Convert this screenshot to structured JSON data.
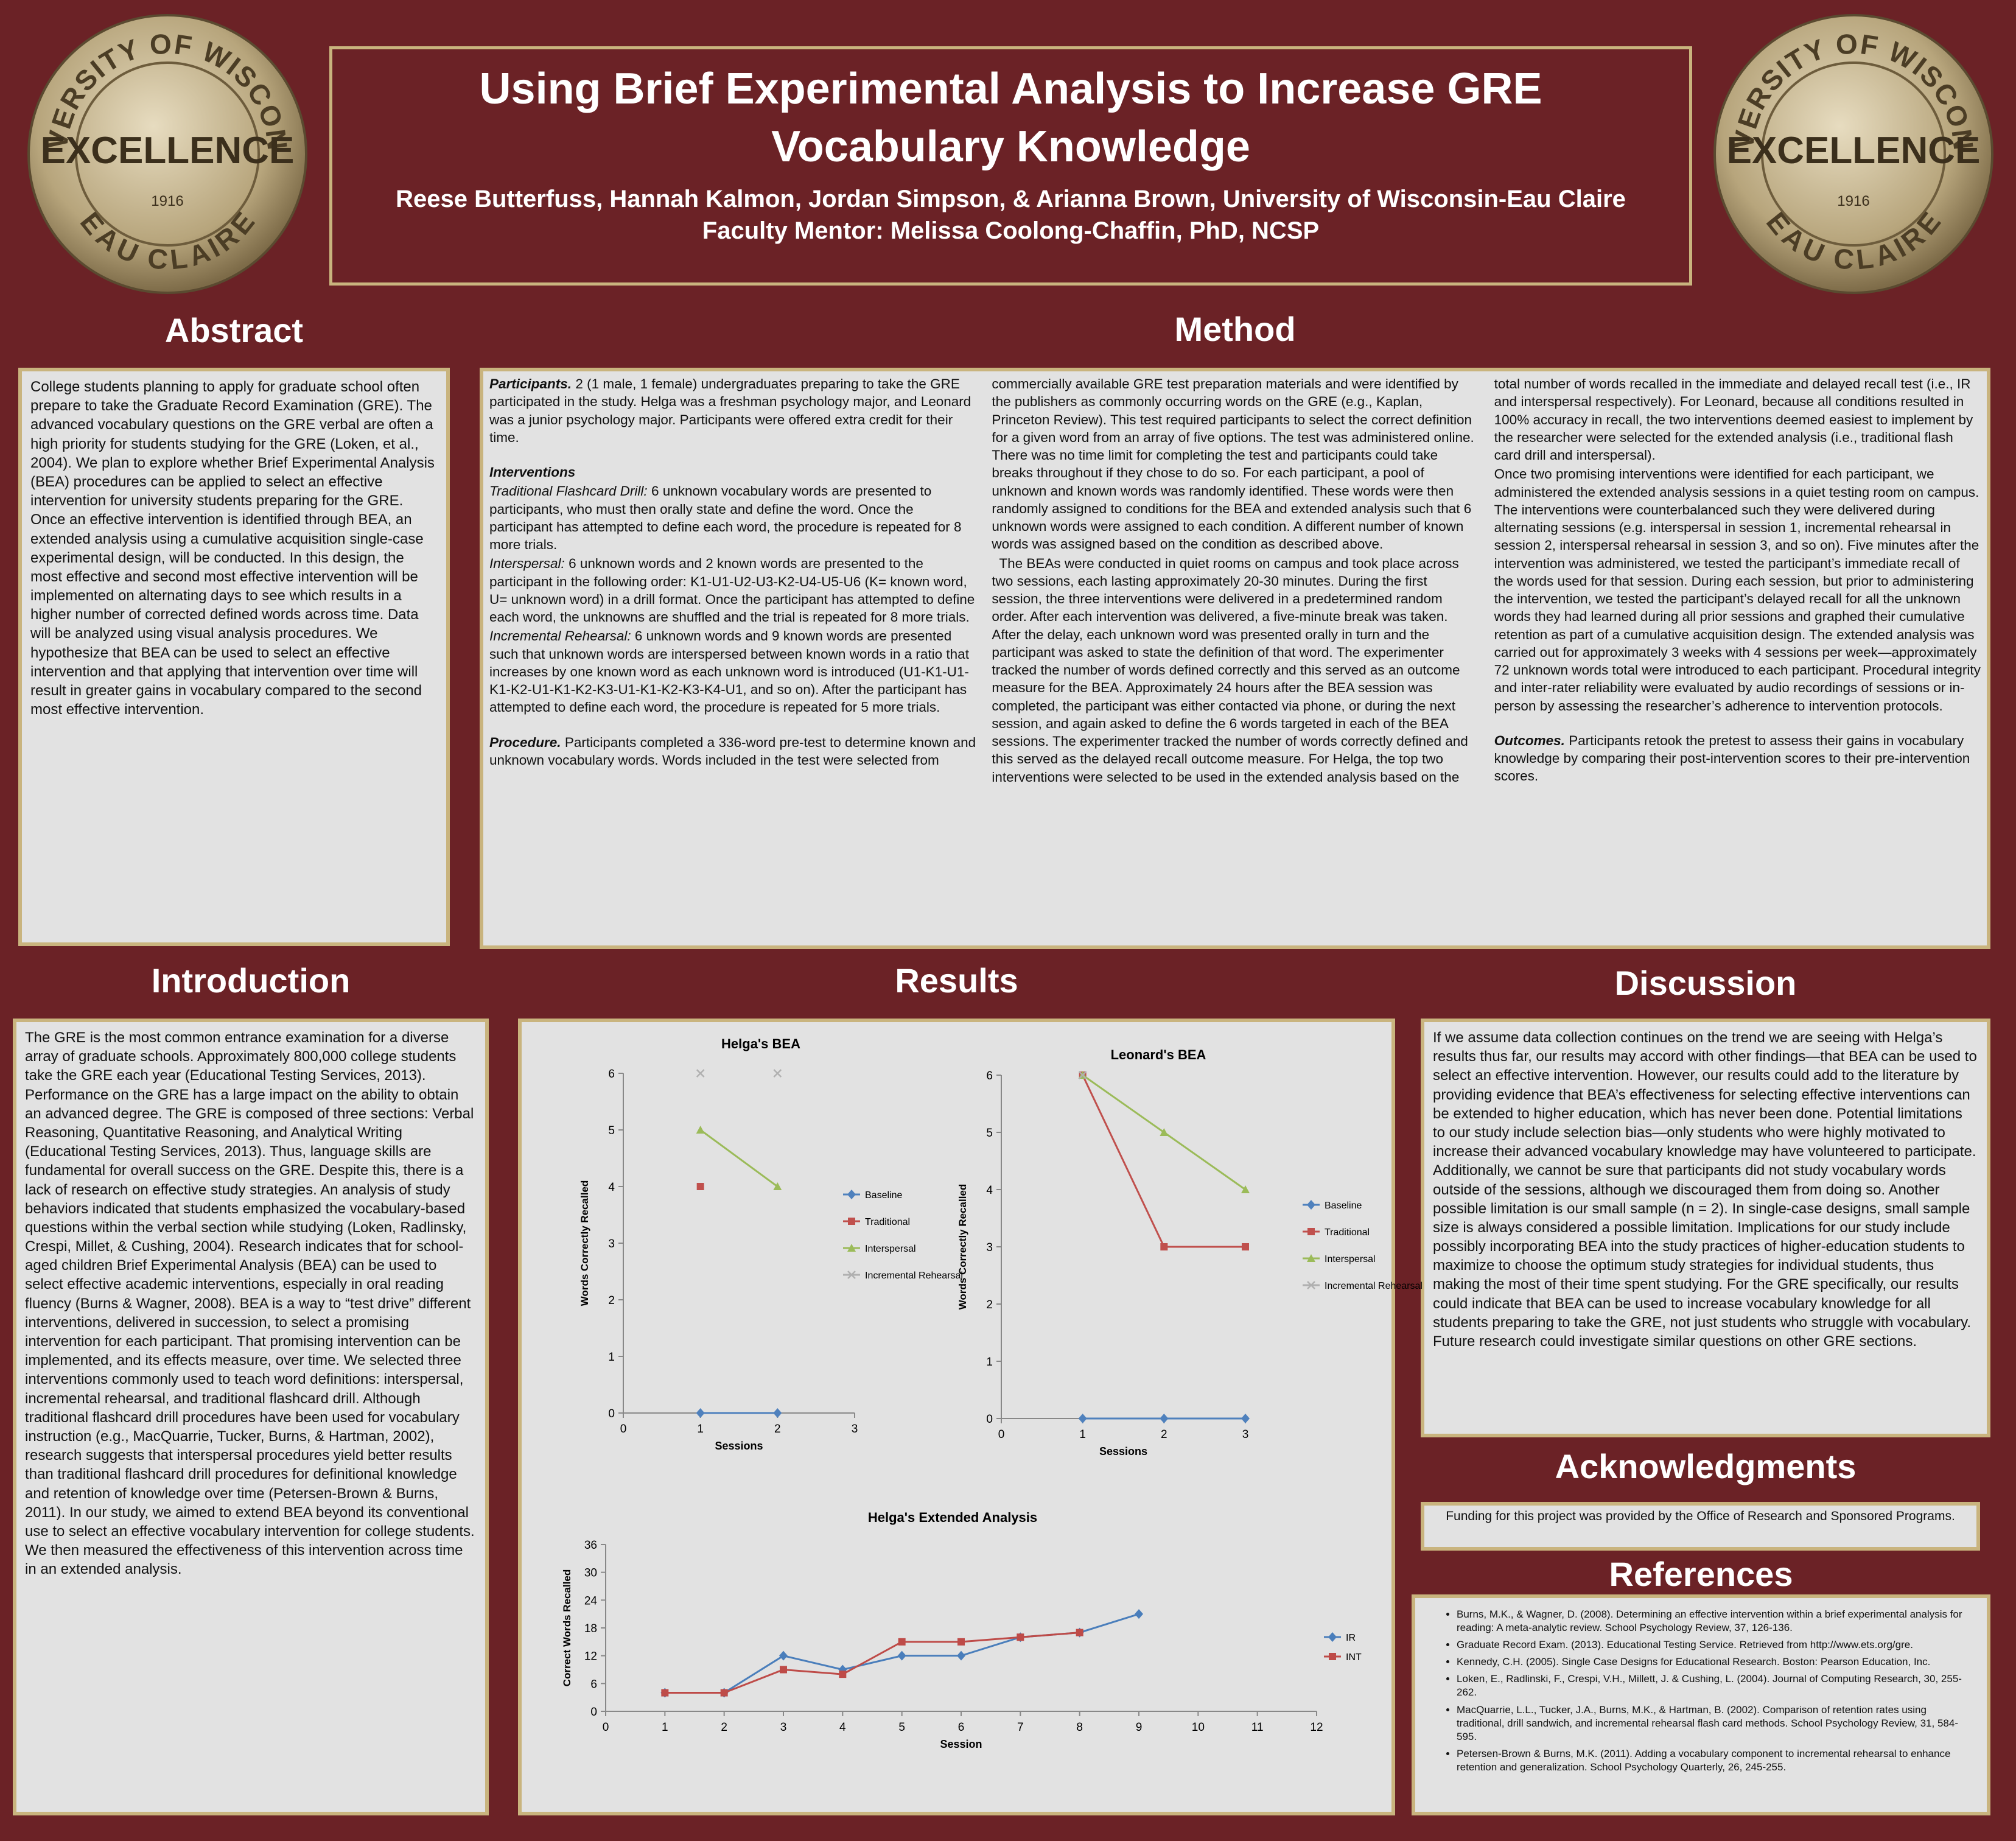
{
  "header": {
    "title": "Using Brief Experimental Analysis to Increase GRE Vocabulary Knowledge",
    "authors": "Reese Butterfuss, Hannah Kalmon, Jordan Simpson, & Arianna Brown, University of Wisconsin-Eau Claire",
    "mentor": "Faculty Mentor: Melissa Coolong-Chaffin, PhD, NCSP"
  },
  "logo": {
    "top": "UNIVERSITY OF WISCONSIN",
    "center": "EXCELLENCE",
    "year": "1916",
    "bottom": "EAU CLAIRE"
  },
  "abstract": {
    "heading": "Abstract",
    "text": "College students planning to apply for graduate school often prepare to take the Graduate Record Examination (GRE). The advanced vocabulary questions on the GRE verbal are often a high priority for students studying for the GRE (Loken, et al., 2004). We plan to explore whether Brief Experimental Analysis (BEA) procedures can be applied to select an effective intervention for university students preparing for the GRE. Once an effective intervention is identified through BEA, an extended analysis using a cumulative acquisition single-case experimental design, will be conducted. In this design, the most effective and second most effective intervention will be implemented on alternating days to see which results in a higher number of corrected defined words across time. Data will be analyzed using visual analysis procedures. We hypothesize that BEA can be used to select an effective intervention and that applying that intervention over time will result in greater gains in vocabulary compared to the second most effective intervention."
  },
  "method": {
    "heading": "Method",
    "paragraphs": [
      {
        "lead": "Participants.",
        "text": "2 (1 male, 1 female) undergraduates preparing to take the GRE participated in the study. Helga was a freshman psychology major, and Leonard was a junior psychology major. Participants were offered extra credit for their time."
      },
      {
        "lead": "Interventions",
        "text": ""
      },
      {
        "lead": "Traditional Flashcard Drill:",
        "text": "6 unknown vocabulary words are presented to participants, who must then orally state and define the word. Once the participant has attempted to define each word, the procedure is repeated for 8 more trials."
      },
      {
        "lead": "Interspersal:",
        "text": "6 unknown words and 2 known words are presented to the participant in the following order: K1-U1-U2-U3-K2-U4-U5-U6 (K= known word, U= unknown word) in a drill format. Once the participant has attempted to define each word, the unknowns are shuffled and the trial is repeated for 8 more trials."
      },
      {
        "lead": "Incremental Rehearsal:",
        "text": "6 unknown words and 9 known words are presented such that unknown words are interspersed between known words in a ratio that increases by one known word as each unknown word is introduced (U1-K1-U1-K1-K2-U1-K1-K2-K3-U1-K1-K2-K3-K4-U1, and so on). After the participant has attempted to define each word, the procedure is repeated for 5 more trials."
      },
      {
        "lead": "Procedure.",
        "text": "Participants completed a 336-word pre-test to determine known and unknown vocabulary words. Words included in the test were selected from commercially available GRE test preparation materials and were identified by the publishers as commonly occurring words on the GRE (e.g., Kaplan, Princeton Review). This test required participants to select the correct definition for a given word from an array of five options. The test was administered online. There was no time limit for completing the test and participants could take breaks throughout if they chose to do so. For each participant, a pool of unknown and known words was randomly identified. These words were then randomly assigned to conditions for the BEA and extended analysis such that 6 unknown words were assigned to each condition. A different number of known words was assigned based on the condition as described above."
      },
      {
        "lead": "",
        "text": "The BEAs were conducted in quiet rooms on campus and took place across two sessions, each lasting approximately 20-30 minutes. During the first session, the three interventions were delivered in a predetermined random order. After each intervention was delivered, a five-minute break was taken. After the delay, each unknown word was presented orally in turn and the participant was asked to state the definition of that word. The experimenter tracked the number of words defined correctly and this served as an outcome measure for the BEA. Approximately 24 hours after the BEA session was completed, the participant was either contacted via phone, or during the next session, and again asked to define the 6 words targeted in each of the BEA sessions. The experimenter tracked the number of words correctly defined and this served as the delayed recall outcome measure. For Helga, the top two interventions were selected to be used in the extended analysis based on the total number of words recalled in the immediate and delayed recall test (i.e., IR and interspersal respectively). For Leonard, because all conditions resulted in 100% accuracy in recall, the two interventions deemed easiest to implement by the researcher were selected for the extended analysis (i.e., traditional flash card drill and interspersal)."
      },
      {
        "lead": "",
        "text": "Once two promising interventions were identified for each participant, we administered the extended analysis sessions in a quiet testing room on campus. The interventions were counterbalanced such they were delivered during alternating sessions (e.g. interspersal in session 1, incremental rehearsal in session 2, interspersal rehearsal in session 3, and so on). Five minutes after the intervention was administered, we tested the participant’s immediate recall of the words used for that session. During each session, but prior to administering the intervention, we tested the participant’s delayed recall for all the unknown words they had learned during all prior sessions and graphed their cumulative retention as part of a cumulative acquisition design. The extended analysis was carried out for approximately 3 weeks with 4 sessions per week—approximately 72 unknown words total were introduced to each participant. Procedural integrity and inter-rater reliability were evaluated by audio recordings of sessions or in-person by assessing the researcher’s adherence to intervention protocols."
      },
      {
        "lead": "Outcomes.",
        "text": "Participants retook the pretest to assess their gains in vocabulary knowledge by comparing their post-intervention scores to their pre-intervention scores."
      }
    ]
  },
  "introduction": {
    "heading": "Introduction",
    "text": "The GRE is the most common entrance examination for a diverse array of graduate schools. Approximately 800,000 college students take the GRE each year (Educational Testing Services, 2013). Performance on the GRE has a large impact on the ability to obtain an advanced degree. The GRE is composed of three sections: Verbal Reasoning, Quantitative Reasoning, and Analytical Writing (Educational Testing Services, 2013). Thus, language skills are fundamental for overall success on the GRE. Despite this, there is a lack of research on effective study strategies. An analysis of study behaviors indicated that students emphasized the vocabulary-based questions within the verbal section while studying (Loken, Radlinsky, Crespi, Millet, & Cushing, 2004). Research indicates that for school-aged children Brief Experimental Analysis (BEA) can be used to select effective academic interventions, especially in oral reading fluency (Burns & Wagner, 2008). BEA is a way to “test drive” different interventions, delivered in succession, to select a promising intervention for each participant. That promising intervention can be implemented, and its effects measure, over time. We selected three interventions commonly used to teach word definitions: interspersal, incremental rehearsal, and traditional flashcard drill. Although traditional flashcard drill procedures have been used for vocabulary instruction (e.g., MacQuarrie, Tucker, Burns, & Hartman, 2002), research suggests that interspersal procedures yield better results than traditional flashcard drill procedures for definitional knowledge and retention of knowledge over time (Petersen-Brown & Burns, 2011). In our study, we aimed to extend BEA beyond its conventional use to select an effective vocabulary intervention for college students. We then measured the effectiveness of this intervention across time in an extended analysis."
  },
  "results": {
    "heading": "Results"
  },
  "chart_data": [
    {
      "type": "line",
      "title": "Helga's BEA",
      "x_label": "Sessions",
      "y_label": "Words Correctly Recalled",
      "x": [
        1,
        2
      ],
      "xlim": [
        0,
        3
      ],
      "xticks": [
        0,
        1,
        2,
        3
      ],
      "ylim": [
        0,
        6
      ],
      "yticks": [
        0,
        1,
        2,
        3,
        4,
        5,
        6
      ],
      "series": [
        {
          "name": "Baseline",
          "color": "#4f81bd",
          "marker": "diamond",
          "values": [
            0,
            0
          ]
        },
        {
          "name": "Traditional",
          "color": "#c0504d",
          "marker": "square",
          "values": [
            4,
            null
          ]
        },
        {
          "name": "Interspersal",
          "color": "#9bbb59",
          "marker": "triangle",
          "values": [
            5,
            4
          ]
        },
        {
          "name": "Incremental Rehearsal",
          "color": "#b0b0b0",
          "marker": "x",
          "values": [
            6,
            6
          ]
        }
      ]
    },
    {
      "type": "line",
      "title": "Leonard's BEA",
      "x_label": "Sessions",
      "y_label": "Words Correctly Recalled",
      "x": [
        1,
        2,
        3
      ],
      "xlim": [
        0,
        3
      ],
      "xticks": [
        0,
        1,
        2,
        3
      ],
      "ylim": [
        0,
        6
      ],
      "yticks": [
        0,
        1,
        2,
        3,
        4,
        5,
        6
      ],
      "series": [
        {
          "name": "Baseline",
          "color": "#4f81bd",
          "marker": "diamond",
          "values": [
            0,
            0,
            0
          ]
        },
        {
          "name": "Traditional",
          "color": "#c0504d",
          "marker": "square",
          "values": [
            6,
            3,
            3
          ]
        },
        {
          "name": "Interspersal",
          "color": "#9bbb59",
          "marker": "triangle",
          "values": [
            6,
            5,
            4
          ]
        },
        {
          "name": "Incremental Rehearsal",
          "color": "#b0b0b0",
          "marker": "x",
          "values": [
            6,
            null,
            null
          ]
        }
      ]
    },
    {
      "type": "line",
      "title": "Helga's Extended Analysis",
      "x_label": "Session",
      "y_label": "Correct Words Recalled",
      "x": [
        1,
        2,
        3,
        4,
        5,
        6,
        7,
        8,
        9
      ],
      "xlim": [
        0,
        12
      ],
      "xticks": [
        0,
        1,
        2,
        3,
        4,
        5,
        6,
        7,
        8,
        9,
        10,
        11,
        12
      ],
      "ylim": [
        0,
        36
      ],
      "yticks": [
        0,
        6,
        12,
        18,
        24,
        30,
        36
      ],
      "series": [
        {
          "name": "IR",
          "color": "#4a7ebb",
          "marker": "diamond",
          "values": [
            4,
            4,
            12,
            9,
            12,
            12,
            16,
            17,
            21
          ]
        },
        {
          "name": "INT",
          "color": "#be4b48",
          "marker": "square",
          "values": [
            4,
            4,
            9,
            8,
            15,
            15,
            16,
            17,
            null
          ]
        }
      ]
    }
  ],
  "discussion": {
    "heading": "Discussion",
    "text": "If we assume data collection continues on the trend we are seeing with Helga’s results thus far, our results may accord with other findings—that BEA can be used to select an effective intervention. However, our results could add to the literature by providing evidence that BEA’s effectiveness for selecting effective interventions can be extended to higher education, which has never been done. Potential limitations to our study include selection bias—only students who were highly motivated to increase their advanced vocabulary knowledge may have volunteered to participate. Additionally, we cannot be sure that participants did not study vocabulary words outside of the sessions, although we discouraged them from doing so. Another possible limitation is our small sample (n = 2). In single-case designs, small sample size is always considered a possible limitation. Implications for our study include possibly incorporating BEA into the study practices of higher-education students to maximize to choose the optimum study strategies for individual students, thus making the most of their time spent studying. For the GRE specifically, our results could indicate that BEA can be used to increase vocabulary knowledge for all students preparing to take the GRE, not just students who struggle with vocabulary. Future research could investigate similar questions on other GRE sections."
  },
  "acknowledgments": {
    "heading": "Acknowledgments",
    "text": "Funding for this project was provided by the Office of Research and Sponsored Programs."
  },
  "references": {
    "heading": "References",
    "items": [
      "Burns, M.K., & Wagner, D. (2008). Determining an effective intervention within a brief experimental analysis for reading: A meta-analytic review. School Psychology Review, 37, 126-136.",
      "Graduate Record Exam. (2013). Educational Testing Service. Retrieved from http://www.ets.org/gre.",
      "Kennedy, C.H. (2005). Single Case Designs for Educational Research. Boston: Pearson Education, Inc.",
      "Loken, E., Radlinski, F., Crespi, V.H., Millett, J. & Cushing, L. (2004). Journal of Computing Research, 30, 255-262.",
      "MacQuarrie, L.L., Tucker, J.A., Burns, M.K., & Hartman, B. (2002). Comparison of retention rates using traditional, drill sandwich, and incremental rehearsal flash card methods. School Psychology Review, 31, 584-595.",
      "Petersen-Brown & Burns, M.K. (2011). Adding a vocabulary component to incremental rehearsal to enhance retention and generalization. School Psychology Quarterly, 26, 245-255."
    ]
  }
}
